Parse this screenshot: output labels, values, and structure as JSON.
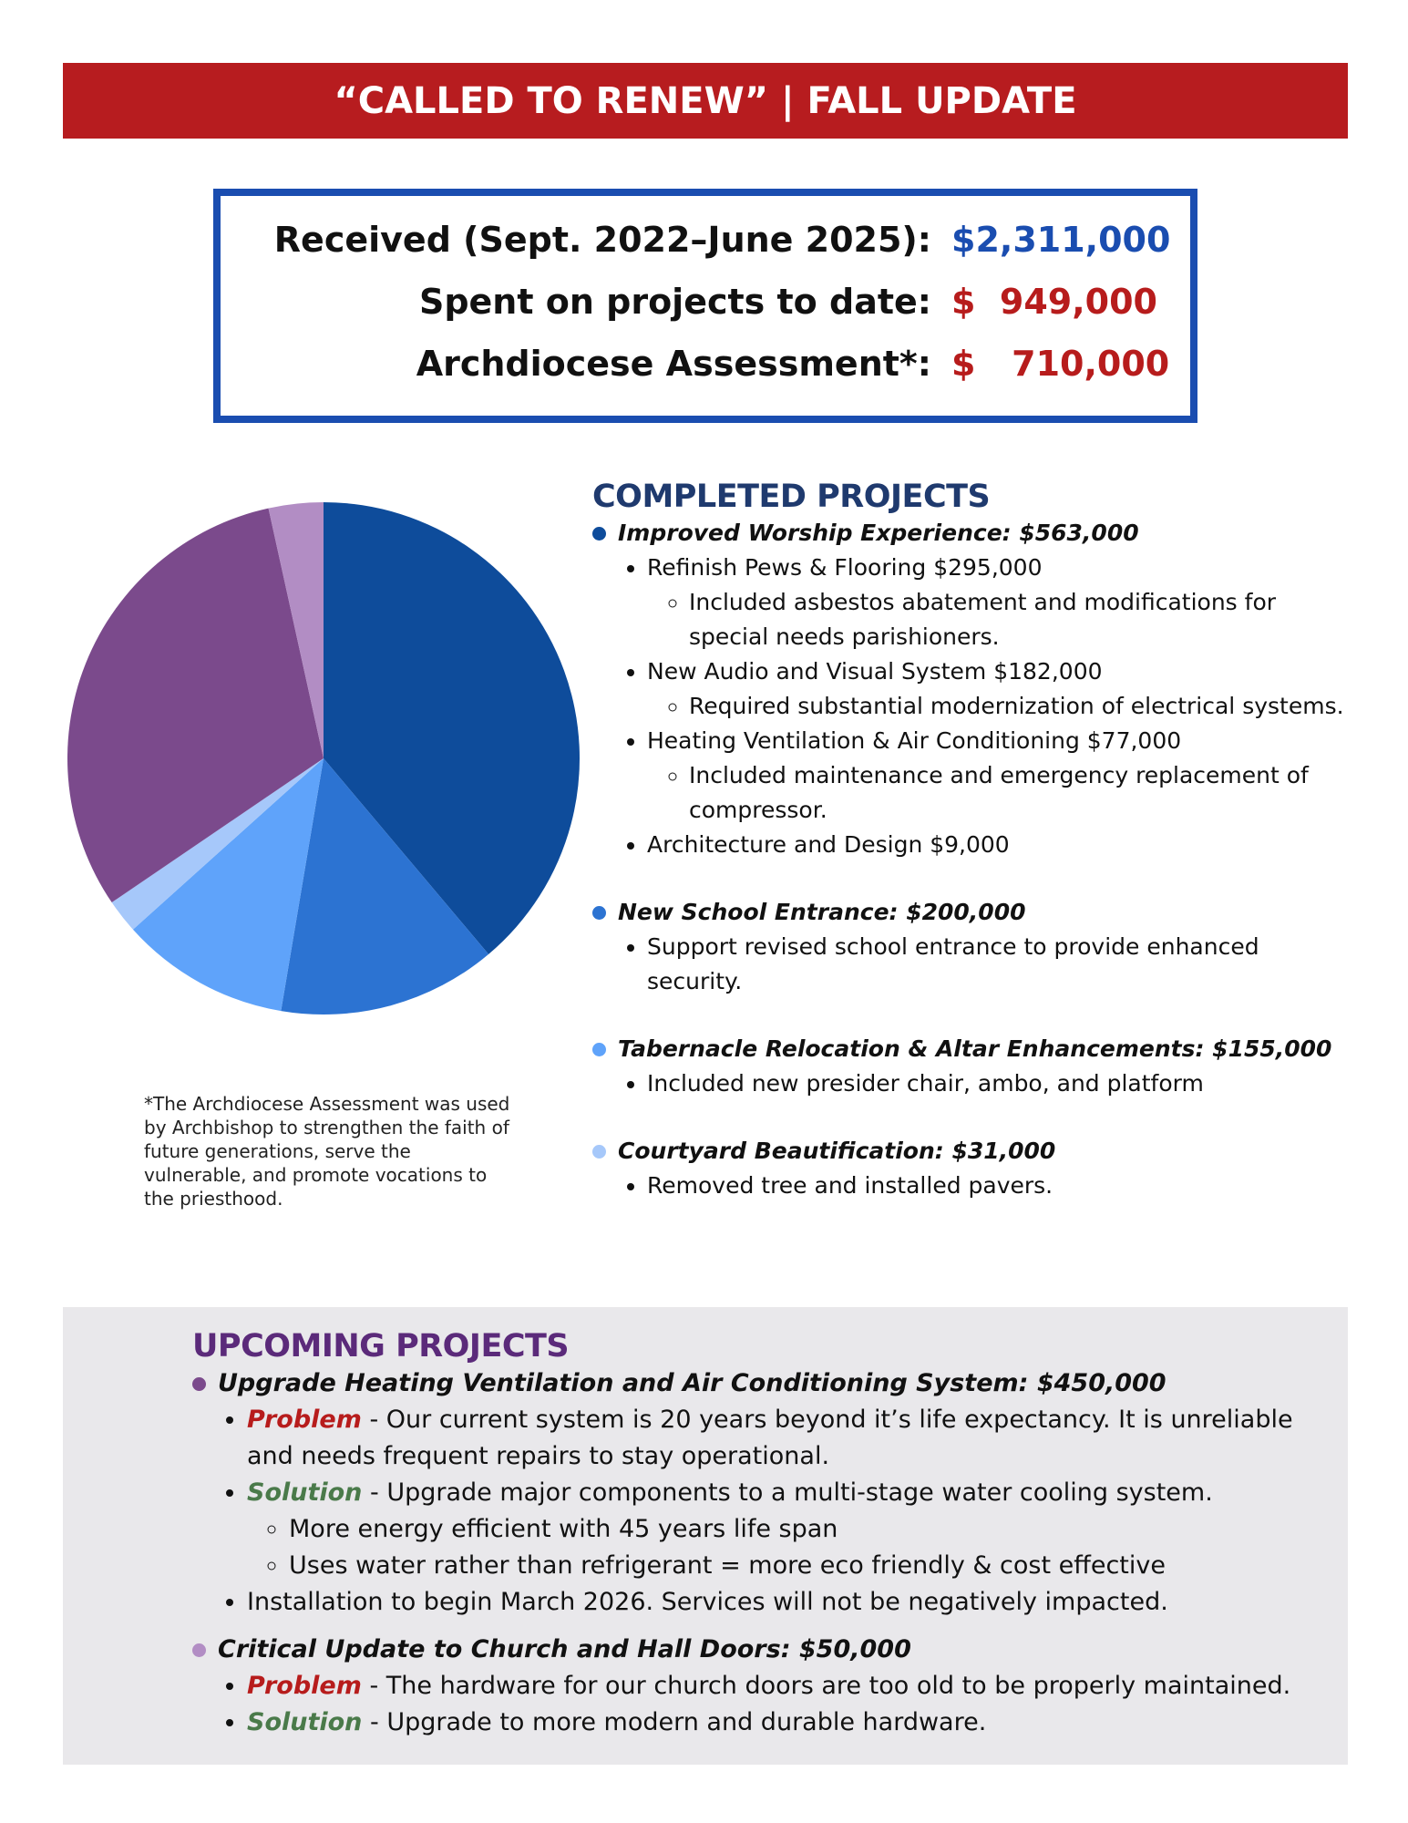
{
  "header": {
    "title": "“CALLED TO RENEW” | FALL UPDATE"
  },
  "summary": {
    "rows": [
      {
        "label": "Received (Sept. 2022–June 2025):",
        "value": "$2,311,000"
      },
      {
        "label": "Spent on projects to date:",
        "value": "$  949,000"
      },
      {
        "label": "Archdiocese Assessment*:",
        "value": "$   710,000"
      }
    ]
  },
  "chart_data": {
    "type": "pie",
    "values": [
      563000,
      200000,
      155000,
      31000,
      450000,
      50000
    ],
    "colors": [
      "#0e4c9b",
      "#2c73d2",
      "#5fa3fa",
      "#a6c8fa",
      "#7b4a8c",
      "#b28dc4"
    ]
  },
  "footnote": "*The Archdiocese Assessment was used by Archbishop to strengthen the faith of future generations, serve the vulnerable, and promote vocations to the priesthood.",
  "completed": {
    "title": "COMPLETED PROJECTS",
    "items": [
      {
        "title": "Improved Worship Experience: $563,000",
        "bullets": [
          {
            "text": "Refinish Pews & Flooring $295,000",
            "notes": [
              "Included asbestos abatement and modifications for special needs parishioners."
            ]
          },
          {
            "text": "New Audio and Visual System $182,000",
            "notes": [
              "Required substantial modernization of electrical systems."
            ]
          },
          {
            "text": "Heating Ventilation & Air Conditioning $77,000",
            "notes": [
              "Included maintenance and emergency replacement of compressor."
            ]
          },
          {
            "text": "Architecture and Design $9,000",
            "notes": []
          }
        ]
      },
      {
        "title": "New School Entrance: $200,000",
        "bullets": [
          {
            "text": "Support revised school entrance to provide enhanced security.",
            "notes": []
          }
        ]
      },
      {
        "title": "Tabernacle Relocation & Altar Enhancements: $155,000",
        "bullets": [
          {
            "text": "Included new presider chair, ambo, and platform",
            "notes": []
          }
        ]
      },
      {
        "title": "Courtyard Beautification: $31,000",
        "bullets": [
          {
            "text": "Removed tree and installed pavers.",
            "notes": []
          }
        ]
      }
    ]
  },
  "upcoming": {
    "title": "UPCOMING PROJECTS",
    "items": [
      {
        "title": "Upgrade Heating Ventilation and Air Conditioning System: $450,000",
        "bullets": [
          {
            "label": "Problem",
            "text": " - Our current system is 20 years beyond it’s life expectancy. It is unreliable and needs frequent repairs to stay operational.",
            "notes": []
          },
          {
            "label": "Solution",
            "text": " - Upgrade major components to a multi-stage water cooling system.",
            "notes": [
              "More energy efficient with 45 years life span",
              "Uses water rather than refrigerant = more eco friendly & cost effective"
            ]
          },
          {
            "text": "Installation to begin March 2026. Services will not be negatively impacted.",
            "notes": []
          }
        ]
      },
      {
        "title": "Critical Update to Church and Hall Doors: $50,000",
        "bullets": [
          {
            "label": "Problem",
            "text": " - The hardware for our church doors are too old to be properly maintained.",
            "notes": []
          },
          {
            "label": "Solution",
            "text": " - Upgrade to more modern and durable hardware.",
            "notes": []
          }
        ]
      }
    ]
  }
}
